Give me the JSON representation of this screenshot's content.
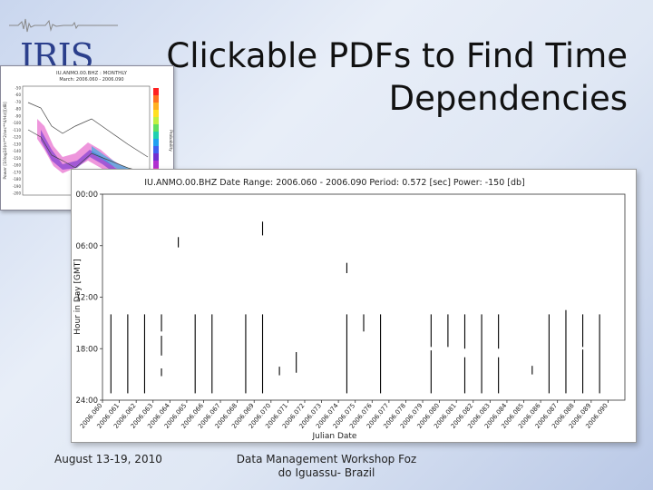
{
  "logo": {
    "text": "IRIS"
  },
  "title": {
    "line1": "Clickable PDFs to Find Time",
    "line2": "Dependencies"
  },
  "inset": {
    "header1": "IU.ANMO.00.BHZ : MONTHLY",
    "header2": "March: 2006.060 - 2006.090",
    "ylabel": "Power [10log10(m**2/sec**4/Hz)][dB]",
    "right_label": "Probability",
    "y_ticks": [
      "-50",
      "-60",
      "-70",
      "-80",
      "-90",
      "-100",
      "-110",
      "-120",
      "-130",
      "-140",
      "-150",
      "-160",
      "-170",
      "-180",
      "-190",
      "-200"
    ]
  },
  "chart_data": {
    "type": "scatter",
    "title": "IU.ANMO.00.BHZ     Date Range: 2006.060  -  2006.090      Period: 0.572 [sec]      Power: -150 [db]",
    "xlabel": "Julian Date",
    "ylabel": "Hour in Day [GMT]",
    "y_ticks": [
      "00:00",
      "06:00",
      "12:00",
      "18:00",
      "24:00"
    ],
    "ylim": [
      0,
      24
    ],
    "x_ticks": [
      "2006.060",
      "2006.061",
      "2006.062",
      "2006.063",
      "2006.064",
      "2006.065",
      "2006.066",
      "2006.067",
      "2006.068",
      "2006.069",
      "2006.070",
      "2006.071",
      "2006.072",
      "2006.073",
      "2006.074",
      "2006.075",
      "2006.076",
      "2006.077",
      "2006.078",
      "2006.079",
      "2006.080",
      "2006.081",
      "2006.082",
      "2006.083",
      "2006.084",
      "2006.085",
      "2006.086",
      "2006.087",
      "2006.088",
      "2006.089",
      "2006.090"
    ],
    "xlim": [
      2006.06,
      2006.091
    ],
    "segments": [
      {
        "x": 2006.0605,
        "y0": 14.0,
        "y1": 23.2
      },
      {
        "x": 2006.0615,
        "y0": 14.0,
        "y1": 23.2
      },
      {
        "x": 2006.0625,
        "y0": 14.0,
        "y1": 23.2
      },
      {
        "x": 2006.0635,
        "y0": 14.0,
        "y1": 16.0
      },
      {
        "x": 2006.0635,
        "y0": 16.5,
        "y1": 18.8
      },
      {
        "x": 2006.0635,
        "y0": 20.3,
        "y1": 21.2
      },
      {
        "x": 2006.0645,
        "y0": 5.0,
        "y1": 6.2
      },
      {
        "x": 2006.0655,
        "y0": 14.0,
        "y1": 23.2
      },
      {
        "x": 2006.0665,
        "y0": 14.0,
        "y1": 23.2
      },
      {
        "x": 2006.0685,
        "y0": 14.0,
        "y1": 23.2
      },
      {
        "x": 2006.0695,
        "y0": 3.2,
        "y1": 4.8
      },
      {
        "x": 2006.0695,
        "y0": 14.0,
        "y1": 23.2
      },
      {
        "x": 2006.0705,
        "y0": 20.1,
        "y1": 21.1
      },
      {
        "x": 2006.0715,
        "y0": 18.4,
        "y1": 20.8
      },
      {
        "x": 2006.0745,
        "y0": 8.0,
        "y1": 9.2
      },
      {
        "x": 2006.0745,
        "y0": 14.0,
        "y1": 23.2
      },
      {
        "x": 2006.0755,
        "y0": 14.0,
        "y1": 16.0
      },
      {
        "x": 2006.0765,
        "y0": 14.0,
        "y1": 23.2
      },
      {
        "x": 2006.0795,
        "y0": 14.0,
        "y1": 17.8
      },
      {
        "x": 2006.0795,
        "y0": 18.2,
        "y1": 23.2
      },
      {
        "x": 2006.0805,
        "y0": 14.0,
        "y1": 17.8
      },
      {
        "x": 2006.0815,
        "y0": 14.0,
        "y1": 18.0
      },
      {
        "x": 2006.0815,
        "y0": 19.0,
        "y1": 23.2
      },
      {
        "x": 2006.0825,
        "y0": 14.0,
        "y1": 23.2
      },
      {
        "x": 2006.0835,
        "y0": 14.0,
        "y1": 18.0
      },
      {
        "x": 2006.0835,
        "y0": 19.0,
        "y1": 23.2
      },
      {
        "x": 2006.0855,
        "y0": 20.0,
        "y1": 21.0
      },
      {
        "x": 2006.0865,
        "y0": 14.0,
        "y1": 23.2
      },
      {
        "x": 2006.0875,
        "y0": 13.5,
        "y1": 23.2
      },
      {
        "x": 2006.0885,
        "y0": 14.0,
        "y1": 17.8
      },
      {
        "x": 2006.0885,
        "y0": 18.1,
        "y1": 23.2
      },
      {
        "x": 2006.0895,
        "y0": 14.0,
        "y1": 23.2
      }
    ]
  },
  "footer": {
    "dates": "August 13-19, 2010",
    "workshop_line1": "Data  Management Workshop Foz",
    "workshop_line2": "do Iguassu- Brazil"
  }
}
